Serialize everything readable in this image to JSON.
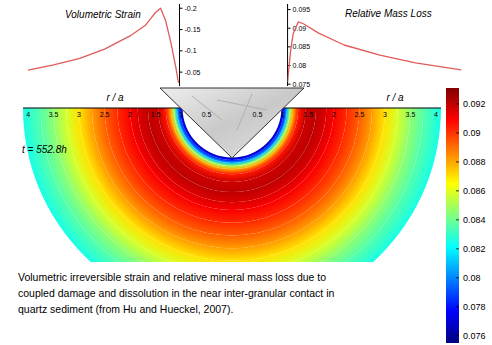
{
  "chart_data": [
    {
      "type": "heatmap",
      "xlabel": "r / a",
      "xlim": [
        0,
        4.1
      ],
      "xticks": [
        0.5,
        1,
        1.5,
        2,
        2.5,
        3,
        3.5,
        4
      ],
      "x": [
        0.97,
        1.02,
        1.08,
        1.14,
        1.2,
        1.3,
        1.45,
        1.65,
        1.85,
        2.0,
        2.25,
        2.5,
        2.75,
        3.0,
        3.25,
        3.5,
        3.75,
        4.1
      ],
      "values": [
        0.0765,
        0.078,
        0.081,
        0.085,
        0.088,
        0.0905,
        0.0918,
        0.092,
        0.0915,
        0.091,
        0.0902,
        0.0893,
        0.0882,
        0.087,
        0.0858,
        0.0846,
        0.0836,
        0.0825
      ],
      "colorbar": {
        "range": [
          0.0755,
          0.0931
        ],
        "ticks": [
          0.076,
          0.078,
          0.08,
          0.082,
          0.084,
          0.086,
          0.088,
          0.09,
          0.092
        ]
      },
      "annotation": "t = 552.8h"
    },
    {
      "type": "line",
      "title": "Volumetric Strain",
      "x": [
        4.0,
        3.5,
        3.0,
        2.5,
        2.0,
        1.7,
        1.6,
        1.5,
        1.4,
        1.3,
        1.2,
        1.1,
        1.05
      ],
      "values": [
        -0.055,
        -0.067,
        -0.082,
        -0.104,
        -0.135,
        -0.16,
        -0.175,
        -0.19,
        -0.2,
        -0.17,
        -0.12,
        -0.06,
        -0.025
      ],
      "xlim": [
        4.05,
        1.03
      ],
      "ylim": [
        -0.0175,
        -0.21
      ],
      "yticks": [
        -0.2,
        -0.15,
        -0.1,
        -0.05
      ],
      "color": "#e05a5a"
    },
    {
      "type": "line",
      "title": "Relative Mass Loss",
      "x": [
        1.09,
        1.15,
        1.2,
        1.3,
        1.4,
        1.7,
        2.2,
        2.9,
        3.6,
        4.5
      ],
      "values": [
        0.0756,
        0.084,
        0.0885,
        0.0917,
        0.0912,
        0.0887,
        0.0855,
        0.0828,
        0.0807,
        0.0788
      ],
      "xlim": [
        1.09,
        4.5
      ],
      "ylim": [
        0.0745,
        0.0965
      ],
      "yticks": [
        0.095,
        0.09,
        0.085,
        0.08,
        0.075
      ],
      "color": "#e05a5a"
    }
  ],
  "caption": [
    "Volumetric irreversible strain and relative mineral mass loss due to",
    "coupled damage and dissolution in the near inter-granular contact in",
    "quartz sediment (from Hu and Hueckel, 2007)."
  ]
}
